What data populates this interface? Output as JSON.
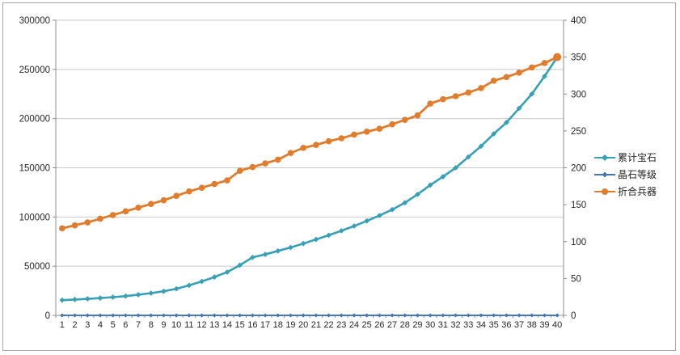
{
  "chart_data": {
    "type": "line",
    "title": "",
    "xlabel": "",
    "ylabel_left": "",
    "ylabel_right": "",
    "grid": true,
    "legend_position": "right",
    "categories": [
      1,
      2,
      3,
      4,
      5,
      6,
      7,
      8,
      9,
      10,
      11,
      12,
      13,
      14,
      15,
      16,
      17,
      18,
      19,
      20,
      21,
      22,
      23,
      24,
      25,
      26,
      27,
      28,
      29,
      30,
      31,
      32,
      33,
      34,
      35,
      36,
      37,
      38,
      39,
      40
    ],
    "y_left": {
      "min": 0,
      "max": 300000,
      "step": 50000
    },
    "y_right": {
      "min": 0,
      "max": 400,
      "step": 50
    },
    "series": [
      {
        "name": "累计宝石",
        "axis": "left",
        "color": "#38a0b5",
        "marker": "diamond",
        "values": [
          15500,
          16100,
          16800,
          17600,
          18500,
          19600,
          21000,
          22600,
          24500,
          27000,
          30500,
          34500,
          39000,
          44000,
          51000,
          59000,
          62000,
          65500,
          69000,
          73000,
          77200,
          81500,
          86000,
          90800,
          96000,
          101500,
          107500,
          114500,
          123000,
          132500,
          141000,
          150000,
          161000,
          172000,
          184500,
          196000,
          210500,
          225000,
          243000,
          262500
        ]
      },
      {
        "name": "晶石等级",
        "axis": "left",
        "color": "#4576b5",
        "marker": "diamond",
        "values": [
          1,
          2,
          3,
          4,
          5,
          6,
          7,
          8,
          9,
          10,
          11,
          12,
          13,
          14,
          15,
          16,
          17,
          18,
          19,
          20,
          21,
          22,
          23,
          24,
          25,
          26,
          27,
          28,
          29,
          30,
          31,
          32,
          33,
          34,
          35,
          36,
          37,
          38,
          39,
          40
        ]
      },
      {
        "name": "折合兵器",
        "axis": "right",
        "color": "#e07c2c",
        "marker": "circle",
        "values": [
          118,
          122,
          126,
          131,
          136,
          141,
          146,
          151,
          156,
          162,
          168,
          173,
          178,
          183,
          196,
          201,
          206,
          211,
          220,
          227,
          231,
          236,
          240,
          245,
          249,
          253,
          259,
          265,
          271,
          287,
          293,
          297,
          302,
          308,
          318,
          323,
          329,
          336,
          342,
          350
        ]
      }
    ],
    "axis_color": "#8c8c8c",
    "grid_color": "#c9c9c9",
    "tick_label_color": "#262626"
  }
}
